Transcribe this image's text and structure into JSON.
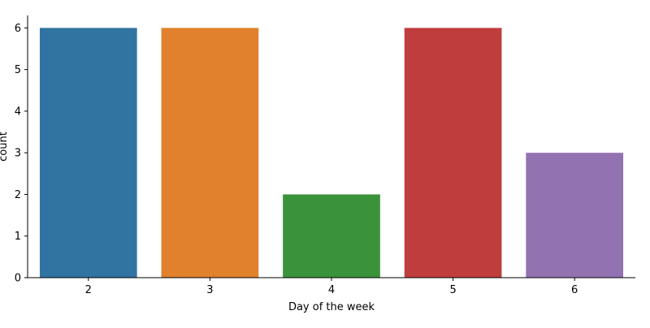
{
  "chart_data": {
    "type": "bar",
    "categories": [
      "2",
      "3",
      "4",
      "5",
      "6"
    ],
    "values": [
      6,
      6,
      2,
      6,
      3
    ],
    "colors": [
      "#3274a1",
      "#e1812c",
      "#3a923a",
      "#c03d3e",
      "#9372b2"
    ],
    "xlabel": "Day of the week",
    "ylabel": "count",
    "ylim": [
      0,
      6.3
    ],
    "yticks": [
      0,
      1,
      2,
      3,
      4,
      5,
      6
    ],
    "grid": false,
    "legend": "none"
  }
}
